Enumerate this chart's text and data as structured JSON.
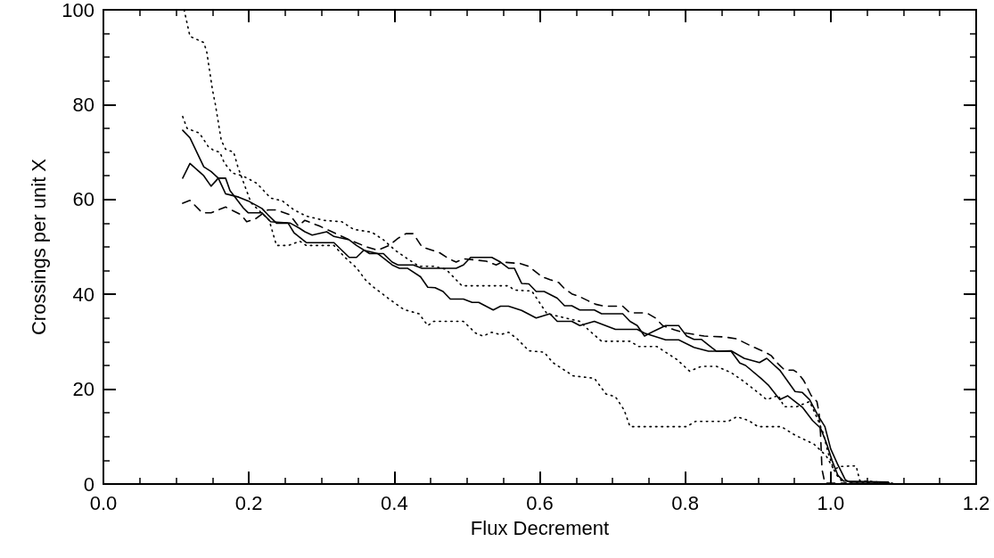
{
  "chart_data": {
    "type": "line",
    "xlabel": "Flux Decrement",
    "ylabel": "Crossings per unit X",
    "xlim": [
      0,
      1.2
    ],
    "ylim": [
      0,
      100
    ],
    "xticks": [
      {
        "value": 0,
        "label": "0.0"
      },
      {
        "value": 0.2,
        "label": "0.2"
      },
      {
        "value": 0.4,
        "label": "0.4"
      },
      {
        "value": 0.6,
        "label": "0.6"
      },
      {
        "value": 0.8,
        "label": "0.8"
      },
      {
        "value": 1,
        "label": "1.0"
      },
      {
        "value": 1.2,
        "label": "1.2"
      }
    ],
    "yticks": [
      0,
      20,
      40,
      60,
      80,
      100
    ],
    "series": [
      {
        "color": "#000000",
        "line_style": "solid",
        "x": [
          0.109,
          0.119,
          0.138,
          0.148,
          0.158,
          0.168,
          0.186,
          0.199,
          0.218,
          0.226,
          0.238,
          0.254,
          0.262,
          0.279,
          0.317,
          0.338,
          0.348,
          0.358,
          0.377,
          0.397,
          0.407,
          0.418,
          0.436,
          0.446,
          0.456,
          0.467,
          0.477,
          0.495,
          0.507,
          0.516,
          0.536,
          0.546,
          0.557,
          0.575,
          0.595,
          0.614,
          0.624,
          0.644,
          0.655,
          0.675,
          0.704,
          0.734,
          0.744,
          0.773,
          0.791,
          0.812,
          0.832,
          0.863,
          0.875,
          0.883,
          0.904,
          0.914,
          0.93,
          0.941,
          0.961,
          0.975,
          0.986,
          0.994,
          1.002,
          1.01,
          1.018,
          1.079
        ],
        "values": [
          74.6,
          73.0,
          66.9,
          65.9,
          64.5,
          61.2,
          60.5,
          59.7,
          58.1,
          56.8,
          55.0,
          55.0,
          53.0,
          50.9,
          50.9,
          47.8,
          47.8,
          49.3,
          48.6,
          46.2,
          45.5,
          45.5,
          43.7,
          41.5,
          41.4,
          40.6,
          39.0,
          39.0,
          38.3,
          38.3,
          36.7,
          37.5,
          37.5,
          36.6,
          35.0,
          35.9,
          34.3,
          34.3,
          33.4,
          34.3,
          32.6,
          32.6,
          31.8,
          30.4,
          30.4,
          28.8,
          28.0,
          28.0,
          25.5,
          25.0,
          22.3,
          20.9,
          17.8,
          18.6,
          16.2,
          13.4,
          11.8,
          8.7,
          4.9,
          1.8,
          0.6,
          0.4
        ]
      },
      {
        "color": "#000000",
        "line_style": "solid",
        "x": [
          0.109,
          0.119,
          0.138,
          0.148,
          0.158,
          0.168,
          0.174,
          0.193,
          0.199,
          0.218,
          0.23,
          0.257,
          0.269,
          0.277,
          0.287,
          0.307,
          0.317,
          0.338,
          0.348,
          0.366,
          0.385,
          0.397,
          0.405,
          0.426,
          0.438,
          0.485,
          0.495,
          0.505,
          0.534,
          0.546,
          0.557,
          0.565,
          0.575,
          0.585,
          0.595,
          0.606,
          0.624,
          0.634,
          0.644,
          0.655,
          0.675,
          0.685,
          0.714,
          0.724,
          0.734,
          0.744,
          0.755,
          0.773,
          0.791,
          0.802,
          0.812,
          0.822,
          0.832,
          0.843,
          0.863,
          0.881,
          0.902,
          0.912,
          0.93,
          0.951,
          0.961,
          0.971,
          0.982,
          0.992,
          1.0,
          1.01,
          1.02,
          1.026,
          1.079
        ],
        "values": [
          64.5,
          67.6,
          65.0,
          62.8,
          64.5,
          64.5,
          61.9,
          58.1,
          57.2,
          57.2,
          55.3,
          55.0,
          54.0,
          53.2,
          52.5,
          53.2,
          52.2,
          51.5,
          50.3,
          48.6,
          48.6,
          46.8,
          46.2,
          46.2,
          45.5,
          45.5,
          46.2,
          47.8,
          47.8,
          46.8,
          45.5,
          45.5,
          42.3,
          42.2,
          40.6,
          40.6,
          39.2,
          37.6,
          37.6,
          36.7,
          36.7,
          35.9,
          35.9,
          34.3,
          33.4,
          31.2,
          32.1,
          33.4,
          33.4,
          31.2,
          30.5,
          30.5,
          29.3,
          28.0,
          28.1,
          26.5,
          25.6,
          26.5,
          24.0,
          19.5,
          19.3,
          17.8,
          14.6,
          12.1,
          7.4,
          4.0,
          0.9,
          0.4,
          0.4
        ]
      },
      {
        "color": "#000000",
        "line_style": "dashed",
        "x": [
          0.109,
          0.119,
          0.136,
          0.148,
          0.168,
          0.189,
          0.197,
          0.209,
          0.226,
          0.238,
          0.256,
          0.268,
          0.277,
          0.297,
          0.338,
          0.362,
          0.377,
          0.393,
          0.405,
          0.416,
          0.426,
          0.438,
          0.452,
          0.462,
          0.475,
          0.485,
          0.495,
          0.526,
          0.54,
          0.548,
          0.573,
          0.585,
          0.603,
          0.614,
          0.626,
          0.634,
          0.644,
          0.655,
          0.667,
          0.677,
          0.689,
          0.714,
          0.724,
          0.747,
          0.759,
          0.769,
          0.785,
          0.802,
          0.826,
          0.855,
          0.871,
          0.892,
          0.91,
          0.918,
          0.928,
          0.937,
          0.949,
          0.955,
          0.963,
          0.973,
          0.981,
          0.984,
          0.986,
          0.988,
          0.992,
          1.02
        ],
        "values": [
          59.2,
          59.8,
          57.2,
          57.2,
          58.4,
          56.8,
          55.3,
          55.9,
          57.8,
          57.8,
          56.8,
          54.4,
          55.6,
          54.4,
          51.5,
          50.0,
          49.3,
          50.3,
          51.8,
          52.8,
          52.8,
          50.0,
          49.3,
          48.8,
          47.5,
          46.8,
          47.5,
          47.0,
          46.2,
          46.8,
          46.5,
          45.9,
          43.7,
          43.1,
          42.5,
          41.2,
          40.1,
          39.5,
          38.6,
          37.9,
          37.5,
          37.5,
          36.1,
          36.1,
          35.0,
          33.4,
          32.5,
          31.8,
          31.2,
          31.0,
          30.6,
          29.0,
          27.8,
          27.1,
          25.3,
          24.0,
          24.0,
          23.4,
          21.8,
          18.7,
          17.4,
          15.0,
          10.6,
          3.1,
          0.2,
          0.2
        ]
      },
      {
        "color": "#000000",
        "line_style": "dotted",
        "x": [
          0.109,
          0.115,
          0.132,
          0.144,
          0.152,
          0.16,
          0.166,
          0.177,
          0.191,
          0.199,
          0.211,
          0.23,
          0.246,
          0.262,
          0.279,
          0.303,
          0.328,
          0.344,
          0.369,
          0.385,
          0.401,
          0.418,
          0.434,
          0.454,
          0.471,
          0.481,
          0.493,
          0.557,
          0.565,
          0.589,
          0.599,
          0.61,
          0.622,
          0.655,
          0.667,
          0.685,
          0.724,
          0.736,
          0.761,
          0.773,
          0.789,
          0.806,
          0.822,
          0.843,
          0.863,
          0.879,
          0.9,
          0.912,
          0.928,
          0.936,
          0.953,
          0.971,
          0.982,
          0.99,
          0.996,
          1.004,
          1.01,
          1.018,
          1.085
        ],
        "values": [
          77.5,
          75.0,
          74.0,
          71.2,
          70.3,
          70.0,
          67.8,
          65.6,
          65.0,
          64.4,
          63.4,
          60.3,
          59.7,
          57.8,
          56.5,
          55.6,
          55.3,
          53.7,
          53.1,
          51.5,
          49.3,
          47.5,
          45.9,
          45.9,
          45.3,
          43.7,
          41.8,
          41.8,
          40.9,
          40.7,
          38.4,
          35.9,
          35.5,
          34.3,
          32.5,
          30.1,
          30.1,
          29.0,
          29.0,
          27.8,
          26.2,
          23.8,
          24.8,
          24.8,
          23.5,
          21.8,
          19.3,
          17.8,
          18.7,
          16.3,
          16.3,
          17.4,
          13.7,
          10.6,
          6.8,
          3.1,
          1.5,
          0.2,
          0.2
        ]
      },
      {
        "color": "#000000",
        "line_style": "dotted",
        "x": [
          0.111,
          0.119,
          0.138,
          0.142,
          0.15,
          0.154,
          0.162,
          0.168,
          0.179,
          0.185,
          0.197,
          0.203,
          0.228,
          0.238,
          0.254,
          0.27,
          0.279,
          0.317,
          0.332,
          0.348,
          0.36,
          0.369,
          0.393,
          0.413,
          0.434,
          0.446,
          0.454,
          0.495,
          0.512,
          0.522,
          0.534,
          0.546,
          0.557,
          0.569,
          0.585,
          0.606,
          0.618,
          0.634,
          0.646,
          0.675,
          0.691,
          0.704,
          0.716,
          0.724,
          0.802,
          0.814,
          0.859,
          0.871,
          0.887,
          0.9,
          0.932,
          0.951,
          0.977,
          0.986,
          0.994,
          1.004,
          1.014,
          1.026,
          1.035,
          1.04,
          1.085
        ],
        "values": [
          100,
          94.4,
          93.1,
          91.2,
          83.1,
          80.0,
          72.5,
          70.6,
          70.0,
          66.8,
          61.8,
          59.3,
          55.6,
          50.3,
          50.3,
          51.2,
          50.3,
          50.3,
          47.8,
          45.6,
          43.1,
          41.8,
          39.0,
          36.8,
          35.9,
          33.4,
          34.3,
          34.3,
          31.8,
          31.2,
          32.0,
          31.5,
          32.0,
          30.6,
          28.1,
          27.8,
          25.6,
          24.0,
          22.8,
          22.3,
          19.0,
          18.4,
          15.6,
          12.1,
          12.1,
          13.2,
          13.2,
          14.2,
          13.4,
          12.1,
          12.1,
          10.3,
          8.4,
          7.1,
          5.9,
          3.1,
          3.7,
          3.8,
          3.8,
          0.7,
          0.2
        ]
      }
    ]
  }
}
